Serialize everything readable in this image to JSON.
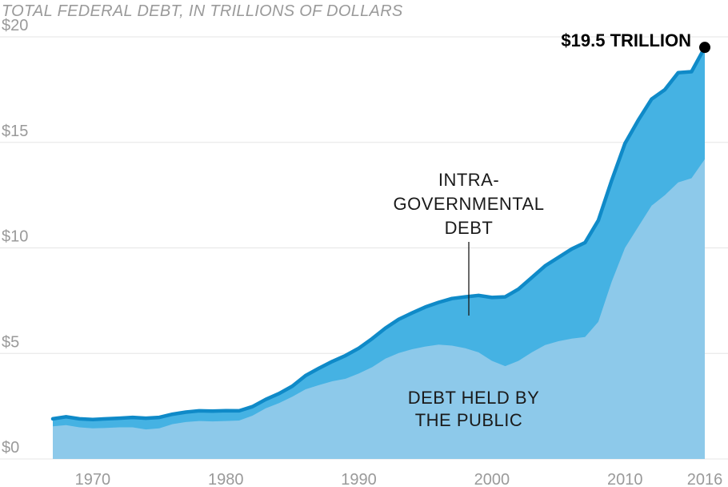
{
  "chart_data": {
    "type": "area",
    "title": "TOTAL FEDERAL DEBT, IN TRILLIONS OF DOLLARS",
    "xlabel": "",
    "ylabel": "",
    "xlim": [
      1967,
      2016
    ],
    "ylim": [
      0,
      20
    ],
    "grid": true,
    "x_ticks": [
      1970,
      1980,
      1990,
      2000,
      2010,
      2016
    ],
    "y_ticks": [
      0,
      5,
      10,
      15,
      20
    ],
    "y_tick_labels": [
      "$0",
      "$5",
      "$10",
      "$15",
      "$20"
    ],
    "x": [
      1967,
      1968,
      1969,
      1970,
      1971,
      1972,
      1973,
      1974,
      1975,
      1976,
      1977,
      1978,
      1979,
      1980,
      1981,
      1982,
      1983,
      1984,
      1985,
      1986,
      1987,
      1988,
      1989,
      1990,
      1991,
      1992,
      1993,
      1994,
      1995,
      1996,
      1997,
      1998,
      1999,
      2000,
      2001,
      2002,
      2003,
      2004,
      2005,
      2006,
      2007,
      2008,
      2009,
      2010,
      2011,
      2012,
      2013,
      2014,
      2015,
      2016
    ],
    "series": [
      {
        "name": "DEBT HELD BY THE PUBLIC",
        "color": "#8dc9ea",
        "values": [
          1.55,
          1.6,
          1.5,
          1.45,
          1.47,
          1.5,
          1.5,
          1.4,
          1.45,
          1.65,
          1.75,
          1.8,
          1.78,
          1.8,
          1.82,
          2.05,
          2.4,
          2.65,
          2.95,
          3.3,
          3.5,
          3.68,
          3.8,
          4.05,
          4.35,
          4.75,
          5.02,
          5.2,
          5.33,
          5.42,
          5.37,
          5.25,
          5.05,
          4.65,
          4.4,
          4.65,
          5.05,
          5.4,
          5.58,
          5.7,
          5.78,
          6.5,
          8.4,
          10.0,
          11.0,
          12.0,
          12.5,
          13.1,
          13.3,
          14.2
        ]
      },
      {
        "name": "INTRA-GOVERNMENTAL DEBT",
        "color": "#45b2e3",
        "total": [
          1.9,
          2.0,
          1.9,
          1.87,
          1.9,
          1.93,
          1.97,
          1.93,
          1.97,
          2.12,
          2.22,
          2.28,
          2.27,
          2.29,
          2.28,
          2.48,
          2.82,
          3.1,
          3.45,
          3.95,
          4.3,
          4.62,
          4.9,
          5.25,
          5.7,
          6.2,
          6.62,
          6.92,
          7.2,
          7.42,
          7.6,
          7.68,
          7.75,
          7.65,
          7.68,
          8.05,
          8.6,
          9.15,
          9.55,
          9.95,
          10.25,
          11.3,
          13.2,
          14.95,
          16.05,
          17.05,
          17.5,
          18.3,
          18.35,
          19.5
        ]
      }
    ],
    "line_color": "#0f8ac8",
    "annotations": {
      "intra_lines": [
        "INTRA-",
        "GOVERNMENTAL",
        "DEBT"
      ],
      "public_lines": [
        "DEBT HELD BY",
        "THE PUBLIC"
      ],
      "endpoint_label": "$19.5 TRILLION",
      "endpoint": {
        "x": 2016,
        "y": 19.5
      }
    }
  }
}
